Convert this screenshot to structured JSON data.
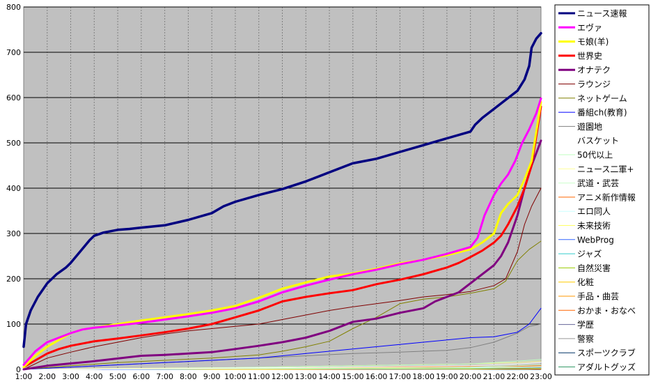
{
  "chart_data": {
    "type": "line",
    "title": "",
    "xlabel": "",
    "ylabel": "",
    "ylim": [
      0,
      800
    ],
    "yticks": [
      0,
      100,
      200,
      300,
      400,
      500,
      600,
      700,
      800
    ],
    "xlim": [
      1,
      23
    ],
    "xticks": [
      "1:00",
      "2:00",
      "3:00",
      "4:00",
      "5:00",
      "6:00",
      "7:00",
      "8:00",
      "9:00",
      "10:00",
      "11:00",
      "12:00",
      "13:00",
      "14:00",
      "15:00",
      "16:00",
      "17:00",
      "18:00",
      "19:00",
      "20:00",
      "21:00",
      "22:00",
      "23:00"
    ],
    "grid": true,
    "legend_position": "right",
    "plot_background": "#c0c0c0",
    "series": [
      {
        "name": "ニュース速報",
        "color": "#000080",
        "width": 3.5,
        "x": [
          1,
          1.1,
          1.3,
          1.6,
          2,
          2.4,
          2.8,
          3,
          3.4,
          3.8,
          4,
          4.4,
          5,
          5.5,
          6,
          7,
          8,
          9,
          9.5,
          10,
          11,
          12,
          13,
          14,
          15,
          16,
          17,
          18,
          19,
          20,
          20.2,
          20.5,
          21,
          21.5,
          22,
          22.3,
          22.5,
          22.6,
          22.8,
          23
        ],
        "y": [
          50,
          100,
          130,
          160,
          190,
          210,
          225,
          235,
          260,
          285,
          295,
          302,
          308,
          310,
          313,
          318,
          330,
          345,
          360,
          370,
          385,
          398,
          415,
          435,
          455,
          465,
          480,
          495,
          510,
          525,
          540,
          555,
          575,
          595,
          615,
          640,
          670,
          710,
          730,
          742
        ]
      },
      {
        "name": "エヴァ",
        "color": "#ff00ff",
        "width": 3,
        "x": [
          1,
          1.5,
          2,
          2.5,
          3,
          3.5,
          4,
          5,
          6,
          7,
          8,
          9,
          10,
          11,
          12,
          13,
          14,
          15,
          16,
          17,
          18,
          19,
          20,
          20.3,
          20.6,
          21,
          21.3,
          21.6,
          21.9,
          22.2,
          22.5,
          22.8,
          23
        ],
        "y": [
          10,
          40,
          60,
          70,
          80,
          88,
          92,
          97,
          103,
          110,
          117,
          125,
          135,
          150,
          170,
          185,
          198,
          210,
          220,
          232,
          242,
          255,
          270,
          290,
          340,
          385,
          410,
          430,
          460,
          500,
          530,
          565,
          598
        ]
      },
      {
        "name": "モ娘(羊)",
        "color": "#ffff00",
        "width": 3,
        "x": [
          1,
          1.5,
          2,
          2.5,
          3,
          3.5,
          4,
          5,
          6,
          7,
          8,
          9,
          10,
          11,
          12,
          13,
          14,
          15,
          16,
          17,
          18,
          19,
          20,
          20.5,
          21,
          21.3,
          21.6,
          22,
          22.3,
          22.6,
          23
        ],
        "y": [
          5,
          30,
          50,
          65,
          80,
          88,
          92,
          100,
          108,
          115,
          122,
          130,
          140,
          158,
          178,
          192,
          205,
          212,
          222,
          234,
          242,
          252,
          265,
          280,
          300,
          345,
          365,
          385,
          420,
          460,
          590
        ]
      },
      {
        "name": "世界史",
        "color": "#ff0000",
        "width": 3,
        "x": [
          1,
          1.5,
          2,
          2.5,
          3,
          4,
          5,
          6,
          7,
          8,
          9,
          10,
          11,
          12,
          13,
          14,
          15,
          16,
          17,
          18,
          19,
          19.5,
          20,
          20.5,
          21,
          21.3,
          21.6,
          22,
          22.3,
          22.6,
          23
        ],
        "y": [
          5,
          20,
          35,
          45,
          52,
          62,
          68,
          75,
          82,
          90,
          100,
          115,
          130,
          150,
          160,
          168,
          175,
          188,
          198,
          210,
          225,
          235,
          248,
          262,
          280,
          295,
          320,
          360,
          400,
          450,
          580
        ]
      },
      {
        "name": "オナテク",
        "color": "#800080",
        "width": 3,
        "x": [
          1,
          2,
          3,
          4,
          5,
          6,
          7,
          8,
          9,
          10,
          11,
          12,
          13,
          14,
          14.5,
          15,
          16,
          17,
          18,
          18.5,
          19,
          19.5,
          20,
          20.5,
          21,
          21.3,
          21.6,
          22,
          22.3,
          22.6,
          23
        ],
        "y": [
          0,
          8,
          13,
          18,
          24,
          30,
          32,
          35,
          38,
          45,
          52,
          60,
          70,
          85,
          95,
          105,
          112,
          125,
          135,
          150,
          160,
          170,
          190,
          210,
          230,
          250,
          280,
          340,
          400,
          450,
          505
        ]
      },
      {
        "name": "ラウンジ",
        "color": "#800000",
        "width": 1,
        "x": [
          1,
          2,
          3,
          4,
          5,
          6,
          7,
          8,
          9,
          10,
          11,
          12,
          13,
          14,
          15,
          16,
          17,
          18,
          19,
          20,
          21,
          21.5,
          22,
          22.3,
          22.6,
          23
        ],
        "y": [
          0,
          25,
          38,
          50,
          60,
          70,
          78,
          85,
          90,
          95,
          100,
          110,
          120,
          130,
          138,
          145,
          152,
          160,
          165,
          172,
          185,
          200,
          260,
          320,
          360,
          400
        ]
      },
      {
        "name": "ネットゲーム",
        "color": "#808000",
        "width": 1,
        "x": [
          1,
          3,
          5,
          7,
          9,
          11,
          12,
          13,
          14,
          15,
          16,
          17,
          18,
          19,
          20,
          21,
          21.5,
          22,
          22.5,
          23
        ],
        "y": [
          0,
          8,
          15,
          20,
          25,
          32,
          40,
          50,
          62,
          90,
          115,
          145,
          155,
          160,
          168,
          178,
          195,
          240,
          265,
          283
        ]
      },
      {
        "name": "番組ch(教育)",
        "color": "#0000ff",
        "width": 1,
        "x": [
          1,
          3,
          5,
          7,
          9,
          11,
          13,
          15,
          16,
          17,
          18,
          19,
          20,
          21,
          22,
          22.5,
          23
        ],
        "y": [
          0,
          5,
          10,
          15,
          20,
          25,
          35,
          45,
          50,
          55,
          60,
          65,
          70,
          72,
          82,
          100,
          135
        ]
      },
      {
        "name": "遊園地",
        "color": "#808080",
        "width": 1,
        "x": [
          1,
          3,
          5,
          7,
          9,
          11,
          13,
          15,
          17,
          19,
          20,
          21,
          22,
          22.5,
          23
        ],
        "y": [
          0,
          5,
          10,
          15,
          20,
          25,
          30,
          35,
          38,
          42,
          48,
          60,
          80,
          95,
          100
        ]
      },
      {
        "name": "バスケット",
        "color": "#ffffff",
        "width": 1,
        "x": [
          1,
          5,
          10,
          15,
          20,
          22,
          23
        ],
        "y": [
          0,
          1,
          3,
          5,
          8,
          12,
          15
        ]
      },
      {
        "name": "50代以上",
        "color": "#bfffbf",
        "width": 1,
        "x": [
          1,
          5,
          10,
          15,
          20,
          22,
          23
        ],
        "y": [
          0,
          1,
          4,
          8,
          12,
          18,
          22
        ]
      },
      {
        "name": "ニュース二軍+",
        "color": "#ffff99",
        "width": 1,
        "x": [
          1,
          5,
          10,
          15,
          20,
          22,
          23
        ],
        "y": [
          0,
          2,
          4,
          8,
          12,
          15,
          18
        ]
      },
      {
        "name": "武道・武芸",
        "color": "#ccffcc",
        "width": 1,
        "x": [
          1,
          5,
          10,
          15,
          20,
          22,
          23
        ],
        "y": [
          0,
          1,
          2,
          3,
          5,
          8,
          10
        ]
      },
      {
        "name": "アニメ新作情報",
        "color": "#ff6600",
        "width": 1,
        "x": [
          1,
          5,
          10,
          15,
          20,
          22,
          23
        ],
        "y": [
          0,
          1,
          2,
          4,
          6,
          7,
          8
        ]
      },
      {
        "name": "エロ同人",
        "color": "#ccffff",
        "width": 1,
        "x": [
          1,
          5,
          10,
          15,
          20,
          22,
          23
        ],
        "y": [
          0,
          1,
          2,
          3,
          4,
          5,
          6
        ]
      },
      {
        "name": "未来技術",
        "color": "#ffff66",
        "width": 1,
        "x": [
          1,
          5,
          10,
          15,
          20,
          22,
          23
        ],
        "y": [
          0,
          1,
          1,
          2,
          3,
          4,
          5
        ]
      },
      {
        "name": "WebProg",
        "color": "#3366ff",
        "width": 1,
        "x": [
          1,
          5,
          10,
          15,
          20,
          22,
          23
        ],
        "y": [
          0,
          0,
          1,
          2,
          3,
          3,
          4
        ]
      },
      {
        "name": "ジャズ",
        "color": "#33cccc",
        "width": 1,
        "x": [
          1,
          5,
          10,
          15,
          20,
          22,
          23
        ],
        "y": [
          0,
          0,
          1,
          1,
          2,
          3,
          3
        ]
      },
      {
        "name": "自然災害",
        "color": "#99cc00",
        "width": 1,
        "x": [
          1,
          5,
          10,
          15,
          20,
          22,
          23
        ],
        "y": [
          0,
          0,
          1,
          1,
          2,
          2,
          3
        ]
      },
      {
        "name": "化粧",
        "color": "#ffcc00",
        "width": 1,
        "x": [
          1,
          5,
          10,
          15,
          20,
          22,
          23
        ],
        "y": [
          0,
          0,
          0,
          1,
          1,
          2,
          2
        ]
      },
      {
        "name": "手品・曲芸",
        "color": "#ff9900",
        "width": 1,
        "x": [
          1,
          5,
          10,
          15,
          20,
          22,
          23
        ],
        "y": [
          0,
          0,
          0,
          1,
          1,
          1,
          2
        ]
      },
      {
        "name": "おかま・おなべ",
        "color": "#ff6600",
        "width": 1,
        "x": [
          1,
          5,
          10,
          15,
          20,
          22,
          23
        ],
        "y": [
          0,
          0,
          0,
          0,
          1,
          1,
          1
        ]
      },
      {
        "name": "学歴",
        "color": "#666699",
        "width": 1,
        "x": [
          1,
          5,
          10,
          15,
          20,
          22,
          23
        ],
        "y": [
          0,
          0,
          0,
          0,
          1,
          1,
          1
        ]
      },
      {
        "name": "警察",
        "color": "#969696",
        "width": 1,
        "x": [
          1,
          5,
          10,
          15,
          20,
          22,
          23
        ],
        "y": [
          0,
          0,
          0,
          0,
          0,
          1,
          1
        ]
      },
      {
        "name": "スポーツクラブ",
        "color": "#003366",
        "width": 1,
        "x": [
          1,
          5,
          10,
          15,
          20,
          22,
          23
        ],
        "y": [
          0,
          0,
          0,
          0,
          0,
          0,
          1
        ]
      },
      {
        "name": "アダルトグッズ",
        "color": "#339966",
        "width": 1,
        "x": [
          1,
          5,
          10,
          15,
          20,
          22,
          23
        ],
        "y": [
          0,
          0,
          0,
          0,
          0,
          0,
          1
        ]
      }
    ]
  }
}
